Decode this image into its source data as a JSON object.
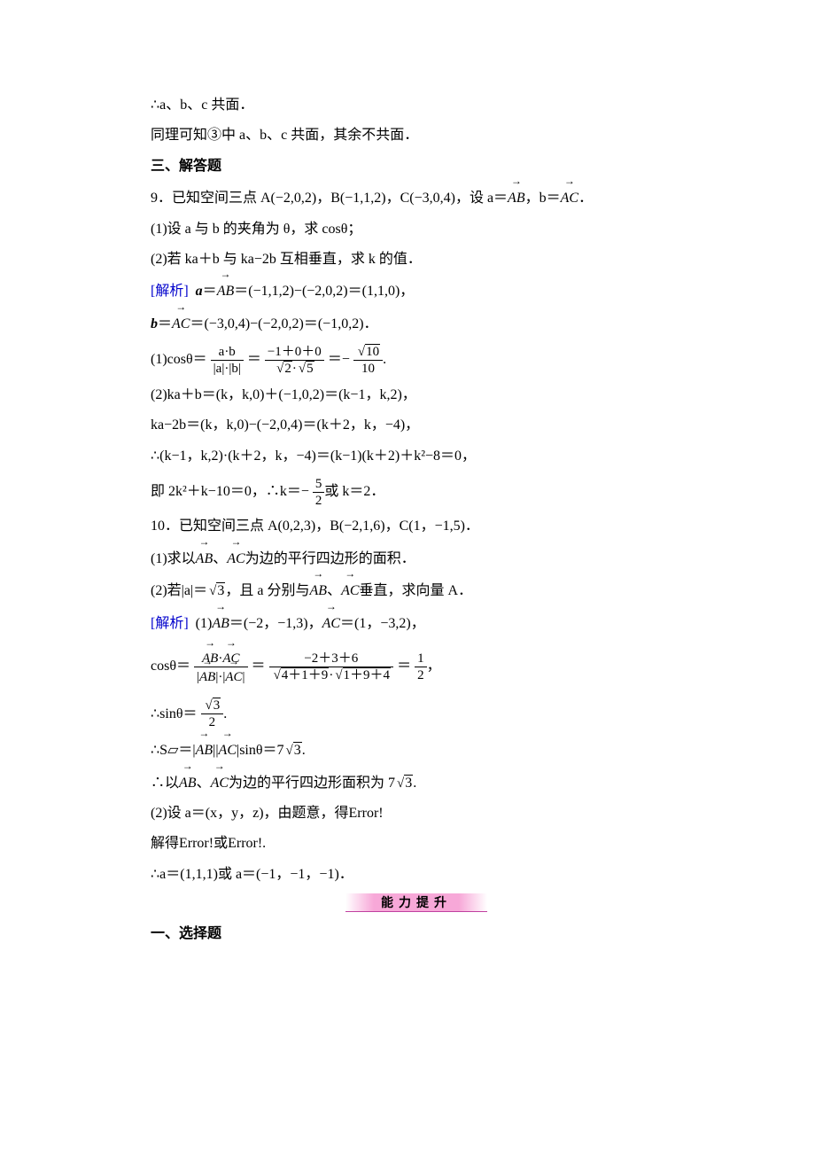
{
  "colors": {
    "text": "#000000",
    "background": "#ffffff",
    "analysis_label": "#0000cc",
    "banner_fill_center": "#f7a8d8",
    "banner_underline": "#c040a0"
  },
  "typography": {
    "body_font": "SimSun",
    "body_size_pt": 12,
    "math_font": "Times New Roman",
    "line_height": 1.9
  },
  "content": {
    "p1": "∴a、b、c 共面．",
    "p2": "同理可知③中 a、b、c 共面，其余不共面．",
    "section_three": "三、解答题",
    "q9_head": "9．已知空间三点 A(−2,0,2)，B(−1,1,2)，C(−3,0,4)，设 a＝",
    "q9_head2": "，b＝",
    "q9_head3": "．",
    "q9_1": "(1)设 a 与 b 的夹角为 θ，求 cosθ；",
    "q9_2": "(2)若 ka＋b 与 ka−2b 互相垂直，求 k 的值．",
    "analysis_label": "[解析]",
    "q9_s1": "＝(−1,1,2)−(−2,0,2)＝(1,1,0)，",
    "q9_s2": "＝(−3,0,4)−(−2,0,2)＝(−1,0,2)．",
    "q9_cos_prefix": "(1)cosθ＝",
    "q9_cos_frac1_num": "a·b",
    "q9_cos_frac1_den": "|a|·|b|",
    "q9_cos_eq": "＝",
    "q9_cos_frac2_num": "−1＋0＋0",
    "q9_cos_end": "＝−",
    "q9_cos_end2": ".",
    "q9_kab1": "(2)ka＋b＝(k，k,0)＋(−1,0,2)＝(k−1，k,2)，",
    "q9_kab2": "ka−2b＝(k，k,0)−(−2,0,4)＝(k＋2，k，−4)，",
    "q9_kab3": "∴(k−1，k,2)·(k＋2，k，−4)＝(k−1)(k＋2)＋k²−8＝0，",
    "q9_kab4a": "即 2k²＋k−10＝0，∴k＝−",
    "q9_kab4b": "或 k＝2．",
    "q10_head": "10．已知空间三点 A(0,2,3)，B(−2,1,6)，C(1，−1,5)．",
    "q10_1": "(1)求以",
    "q10_1b": "、",
    "q10_1c": "为边的平行四边形的面积．",
    "q10_2": "(2)若|a|＝",
    "q10_2b": "，且 a 分别与",
    "q10_2c": "、",
    "q10_2d": "垂直，求向量 A．",
    "q10_s1a": "(1)",
    "q10_s1b": "＝(−2，−1,3)，",
    "q10_s1c": "＝(1，−3,2)，",
    "q10_costh_prefix": "cosθ＝",
    "q10_cos_eq": "＝",
    "q10_cos_frac2_num": "−2＋3＋6",
    "q10_cos_end": "＝",
    "q10_cos_end2": "，",
    "q10_sin_pre": "∴sinθ＝",
    "q10_sin_end": ".",
    "q10_area_pre": "∴S▱＝|",
    "q10_area_mid": "||",
    "q10_area_sin": "|sinθ＝7",
    "q10_area_end": ".",
    "q10_area_conc_pre": "∴以",
    "q10_area_conc_mid": "、",
    "q10_area_conc_tail": "为边的平行四边形面积为 7",
    "q10_area_conc_end": ".",
    "q10_p2a": "(2)设 a＝(x，y，z)，由题意，得Error!",
    "q10_p2b": "解得Error!或Error!.",
    "q10_p2c": "∴a＝(1,1,1)或 a＝(−1，−1，−1)．",
    "banner": "能力提升",
    "section_one": "一、选择题",
    "num_5": "5",
    "num_2": "2",
    "num_10": "10",
    "num_1": "1",
    "num_3": "3",
    "ra": "2",
    "rb": "5",
    "r10": "10",
    "r3": "3",
    "rad_4_1_9": "4＋1＋9",
    "rad_1_9_4": "1＋9＋4"
  }
}
